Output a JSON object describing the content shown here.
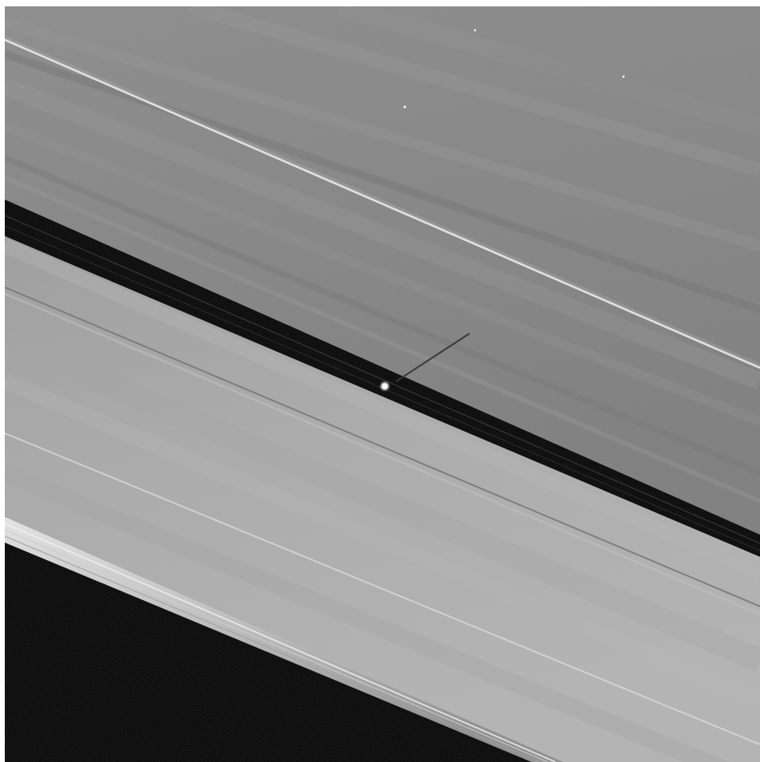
{
  "image": {
    "subject": "",
    "colors": {
      "frame": "#ffffff",
      "outer_ring_light": "#8f8f8f",
      "outer_ring_mid": "#7b7b7b",
      "gap": "#000000",
      "inner_ring": "#a9a9a9",
      "bright_edge": "#d9d9d9",
      "space": "#000000",
      "moonlet": "#ffffff",
      "star": "#ffffff"
    }
  }
}
